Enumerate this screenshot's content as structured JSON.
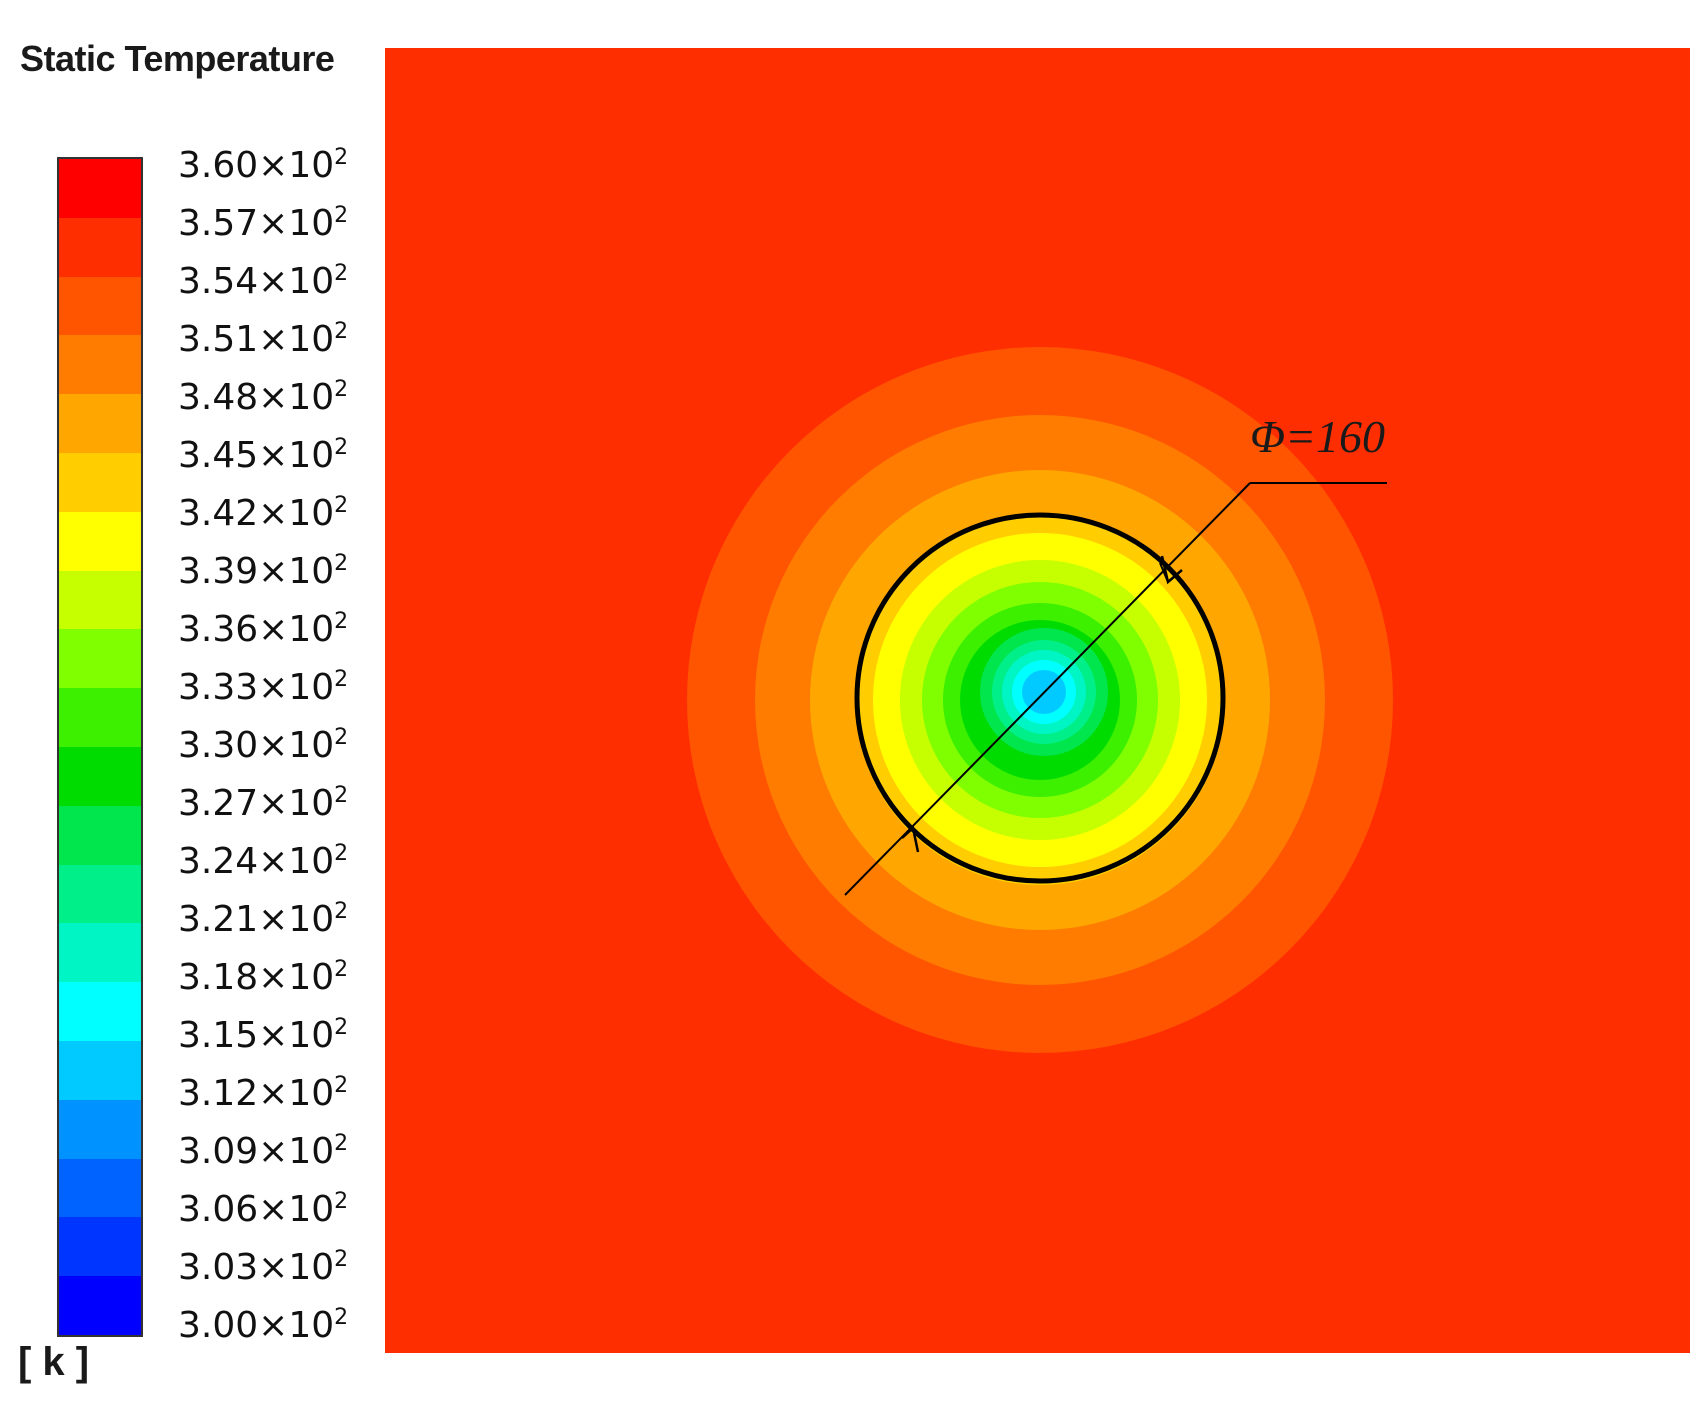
{
  "legend": {
    "title": "Static Temperature",
    "unit": "[ k ]",
    "labels": [
      {
        "mantissa": "3.60",
        "exp": "2"
      },
      {
        "mantissa": "3.57",
        "exp": "2"
      },
      {
        "mantissa": "3.54",
        "exp": "2"
      },
      {
        "mantissa": "3.51",
        "exp": "2"
      },
      {
        "mantissa": "3.48",
        "exp": "2"
      },
      {
        "mantissa": "3.45",
        "exp": "2"
      },
      {
        "mantissa": "3.42",
        "exp": "2"
      },
      {
        "mantissa": "3.39",
        "exp": "2"
      },
      {
        "mantissa": "3.36",
        "exp": "2"
      },
      {
        "mantissa": "3.33",
        "exp": "2"
      },
      {
        "mantissa": "3.30",
        "exp": "2"
      },
      {
        "mantissa": "3.27",
        "exp": "2"
      },
      {
        "mantissa": "3.24",
        "exp": "2"
      },
      {
        "mantissa": "3.21",
        "exp": "2"
      },
      {
        "mantissa": "3.18",
        "exp": "2"
      },
      {
        "mantissa": "3.15",
        "exp": "2"
      },
      {
        "mantissa": "3.12",
        "exp": "2"
      },
      {
        "mantissa": "3.09",
        "exp": "2"
      },
      {
        "mantissa": "3.06",
        "exp": "2"
      },
      {
        "mantissa": "3.03",
        "exp": "2"
      },
      {
        "mantissa": "3.00",
        "exp": "2"
      }
    ],
    "band_colors": [
      "#ff0000",
      "#ff2e00",
      "#ff5500",
      "#ff7c00",
      "#ffa600",
      "#ffcd00",
      "#ffff00",
      "#c6ff00",
      "#80ff00",
      "#3cf000",
      "#00dc00",
      "#00e64c",
      "#00ef88",
      "#00f5c4",
      "#00ffff",
      "#00caff",
      "#0093ff",
      "#0062ff",
      "#0035ff",
      "#0000ff"
    ]
  },
  "contour": {
    "background_color": "#ff2e00",
    "rings": [
      {
        "color": "#ff5500"
      },
      {
        "color": "#ff7c00"
      },
      {
        "color": "#ffa600"
      },
      {
        "color": "#ffcd00"
      },
      {
        "color": "#ffff00"
      },
      {
        "color": "#c6ff00"
      },
      {
        "color": "#80ff00"
      },
      {
        "color": "#3cf000"
      },
      {
        "color": "#00dc00"
      },
      {
        "color": "#00e64c"
      },
      {
        "color": "#00ef88"
      },
      {
        "color": "#00f5c4"
      },
      {
        "color": "#00ffff"
      },
      {
        "color": "#00caff"
      }
    ],
    "dimension_label": "Φ=160"
  }
}
